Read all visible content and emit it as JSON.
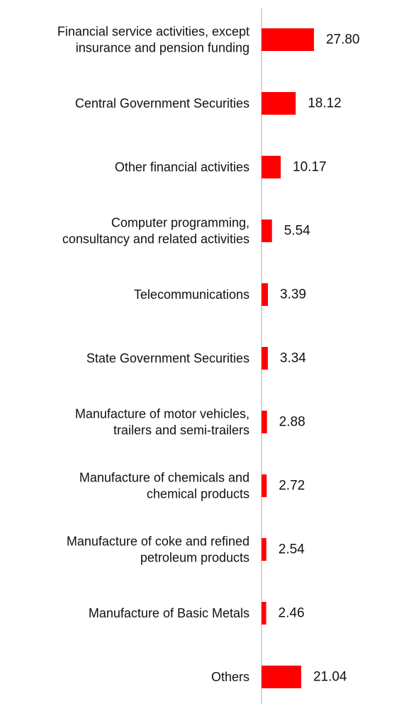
{
  "chart_data": {
    "type": "bar",
    "orientation": "horizontal",
    "categories": [
      "Financial service activities, except insurance and pension funding",
      "Central Government Securities",
      "Other financial activities",
      "Computer programming, consultancy and related activities",
      "Telecommunications",
      "State Government Securities",
      "Manufacture of motor vehicles, trailers and semi-trailers",
      "Manufacture of chemicals and chemical products",
      "Manufacture of coke and refined petroleum products",
      "Manufacture of Basic Metals",
      "Others"
    ],
    "category_lines": [
      [
        "Financial service activities, except",
        "insurance and pension funding"
      ],
      [
        "Central Government Securities"
      ],
      [
        "Other financial activities"
      ],
      [
        "Computer programming,",
        "consultancy and related activities"
      ],
      [
        "Telecommunications"
      ],
      [
        "State Government Securities"
      ],
      [
        "Manufacture of motor vehicles,",
        "trailers and semi-trailers"
      ],
      [
        "Manufacture of chemicals and",
        "chemical products"
      ],
      [
        "Manufacture of coke and refined",
        "petroleum products"
      ],
      [
        "Manufacture of Basic Metals"
      ],
      [
        "Others"
      ]
    ],
    "values": [
      27.8,
      18.12,
      10.17,
      5.54,
      3.39,
      3.34,
      2.88,
      2.72,
      2.54,
      2.46,
      21.04
    ],
    "value_labels": [
      "27.80",
      "18.12",
      "10.17",
      "5.54",
      "3.39",
      "3.34",
      "2.88",
      "2.72",
      "2.54",
      "2.46",
      "21.04"
    ],
    "xlim": [
      0,
      28
    ],
    "title": "",
    "xlabel": "",
    "ylabel": "",
    "grid": false,
    "legend": "none",
    "colors": {
      "bar": "#ff0000",
      "axis": "#c8c8c8",
      "text": "#111111"
    }
  }
}
